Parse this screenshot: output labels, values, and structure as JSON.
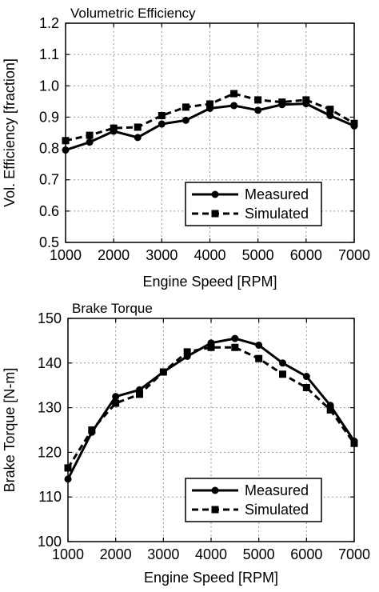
{
  "chart_data": [
    {
      "type": "line",
      "title": "Volumetric Efficiency",
      "xlabel": "Engine Speed [RPM]",
      "ylabel": "Vol. Efficiency [fraction]",
      "xlim": [
        1000,
        7000
      ],
      "ylim": [
        0.5,
        1.2
      ],
      "xticks": [
        "1000",
        "2000",
        "3000",
        "4000",
        "5000",
        "6000",
        "7000"
      ],
      "yticks": [
        "0.5",
        "0.6",
        "0.7",
        "0.8",
        "0.9",
        "1.0",
        "1.1",
        "1.2"
      ],
      "grid": true,
      "legend_position": "bottom-right",
      "x": [
        1000,
        1500,
        2000,
        2500,
        3000,
        3500,
        4000,
        4500,
        5000,
        5500,
        6000,
        6500,
        7000
      ],
      "series": [
        {
          "name": "Measured",
          "style": "solid",
          "marker": "circle",
          "values": [
            0.795,
            0.82,
            0.855,
            0.835,
            0.878,
            0.89,
            0.928,
            0.937,
            0.922,
            0.94,
            0.943,
            0.905,
            0.872
          ]
        },
        {
          "name": "Simulated",
          "style": "dashed",
          "marker": "square",
          "values": [
            0.825,
            0.842,
            0.865,
            0.868,
            0.905,
            0.932,
            0.942,
            0.975,
            0.955,
            0.948,
            0.955,
            0.925,
            0.88
          ]
        }
      ]
    },
    {
      "type": "line",
      "title": "Brake Torque",
      "xlabel": "Engine Speed [RPM]",
      "ylabel": "Brake Torque [N-m]",
      "xlim": [
        1000,
        7000
      ],
      "ylim": [
        100,
        150
      ],
      "xticks": [
        "1000",
        "2000",
        "3000",
        "4000",
        "5000",
        "6000",
        "7000"
      ],
      "yticks": [
        "100",
        "110",
        "120",
        "130",
        "140",
        "150"
      ],
      "grid": true,
      "legend_position": "bottom-right",
      "x": [
        1000,
        1500,
        2000,
        2500,
        3000,
        3500,
        4000,
        4500,
        5000,
        5500,
        6000,
        6500,
        7000
      ],
      "series": [
        {
          "name": "Measured",
          "style": "solid",
          "marker": "circle",
          "values": [
            114,
            124.5,
            132.5,
            134,
            138,
            141.5,
            144.5,
            145.5,
            144,
            140,
            137,
            130.5,
            122.5
          ]
        },
        {
          "name": "Simulated",
          "style": "dashed",
          "marker": "square",
          "values": [
            116.5,
            125,
            131,
            133,
            138,
            142.5,
            143.5,
            143.5,
            141,
            137.5,
            134.5,
            129.5,
            122
          ]
        }
      ]
    }
  ]
}
